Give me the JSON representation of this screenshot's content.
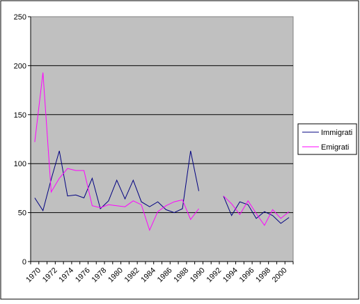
{
  "chart_data": {
    "type": "line",
    "title": "",
    "xlabel": "",
    "ylabel": "",
    "ylim": [
      0,
      250
    ],
    "yticks": [
      0,
      50,
      100,
      150,
      200,
      250
    ],
    "x": [
      1970,
      1971,
      1972,
      1973,
      1974,
      1975,
      1976,
      1977,
      1978,
      1979,
      1980,
      1981,
      1982,
      1983,
      1984,
      1985,
      1986,
      1987,
      1988,
      1989,
      1990,
      1991,
      1992,
      1993,
      1994,
      1995,
      1996,
      1997,
      1998,
      1999,
      2000,
      2001
    ],
    "xtick_labels": [
      "1970",
      "1972",
      "1974",
      "1976",
      "1978",
      "1980",
      "1982",
      "1984",
      "1986",
      "1988",
      "1990",
      "1992",
      "1994",
      "1996",
      "1998",
      "2000"
    ],
    "grid": true,
    "legend_position": "right",
    "background": "#c0c0c0",
    "series": [
      {
        "name": "Immigrati",
        "color": "#000080",
        "values": [
          65,
          52,
          84,
          113,
          67,
          68,
          65,
          85,
          54,
          62,
          83,
          64,
          83,
          61,
          56,
          61,
          53,
          50,
          54,
          113,
          72,
          null,
          null,
          67,
          47,
          61,
          58,
          44,
          51,
          47,
          39,
          45
        ]
      },
      {
        "name": "Emigrati",
        "color": "#ff00ff",
        "values": [
          122,
          193,
          71,
          85,
          95,
          93,
          93,
          57,
          55,
          58,
          57,
          56,
          62,
          58,
          32,
          51,
          57,
          61,
          63,
          43,
          54,
          null,
          null,
          67,
          59,
          48,
          62,
          49,
          37,
          53,
          44,
          51
        ]
      }
    ]
  }
}
